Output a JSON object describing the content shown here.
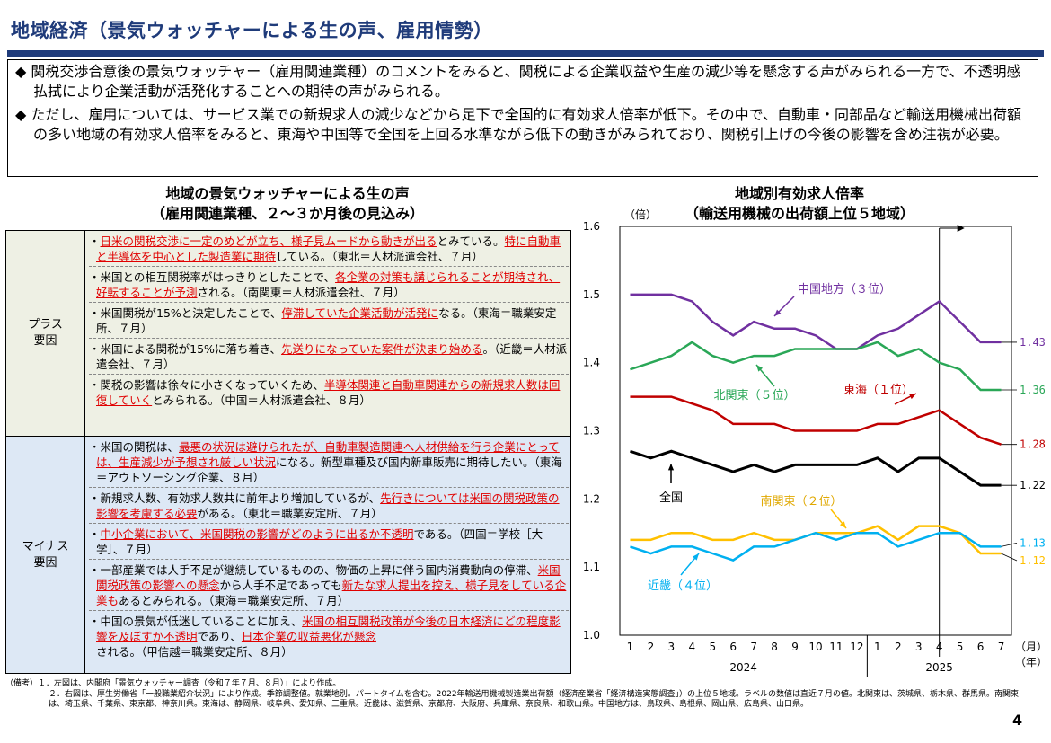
{
  "title": "地域経済（景気ウォッチャーによる生の声、雇用情勢）",
  "summary": [
    "◆ 関税交渉合意後の景気ウォッチャー（雇用関連業種）のコメントをみると、関税による企業収益や生産の減少等を懸念する声がみられる一方で、不透明感払拭により企業活動が活発化することへの期待の声がみられる。",
    "◆ ただし、雇用については、サービス業での新規求人の減少などから足下で全国的に有効求人倍率が低下。その中で、自動車・同部品など輸送用機械出荷額の多い地域の有効求人倍率をみると、東海や中国等で全国を上回る水準ながら低下の動きがみられており、関税引上げの今後の影響を含め注視が必要。"
  ],
  "left_title": [
    "地域の景気ウォッチャーによる生の声",
    "（雇用関連業種、２～３か月後の見込み）"
  ],
  "plus_label": [
    "プラス",
    "要因"
  ],
  "minus_label": [
    "マイナス",
    "要因"
  ],
  "plus_items": [
    [
      [
        "・",
        false
      ],
      [
        "日米の関税交渉に一定のめどが立ち、様子見ムードから動きが出る",
        true
      ],
      [
        "とみている。",
        false
      ],
      [
        "特に自動車と半導体を中心とした製造業に期待",
        true
      ],
      [
        "している。（東北＝人材派遣会社、７月）",
        false
      ]
    ],
    [
      [
        "・米国との相互関税率がはっきりとしたことで、",
        false
      ],
      [
        "各企業の対策も講じられることが期待され、好転することが予測",
        true
      ],
      [
        "される。（南関東＝人材派遣会社、７月）",
        false
      ]
    ],
    [
      [
        "・米国関税が15%と決定したことで、",
        false
      ],
      [
        "停滞していた企業活動が活発に",
        true
      ],
      [
        "なる。（東海＝職業安定所、７月）",
        false
      ]
    ],
    [
      [
        "・米国による関税が15%に落ち着き、",
        false
      ],
      [
        "先送りになっていた案件が決まり始める",
        true
      ],
      [
        "。（近畿＝人材派遣会社、７月）",
        false
      ]
    ],
    [
      [
        "・関税の影響は徐々に小さくなっていくため、",
        false
      ],
      [
        "半導体関連と自動車関連からの新規求人数は回復していく",
        true
      ],
      [
        "とみられる。（中国＝人材派遣会社、８月）",
        false
      ]
    ]
  ],
  "minus_items": [
    [
      [
        "・米国の関税は、",
        false
      ],
      [
        "最悪の状況は避けられたが、自動車製造関連へ人材供給を行う企業にとっては、生産減少が予想され厳しい状況",
        true
      ],
      [
        "になる。新型車種及び国内新車販売に期待したい。（東海＝アウトソーシング企業、８月）",
        false
      ]
    ],
    [
      [
        "・新規求人数、有効求人数共に前年より増加しているが、",
        false
      ],
      [
        "先行きについては米国の関税政策の影響を考慮する必要",
        true
      ],
      [
        "がある。（東北＝職業安定所、７月）",
        false
      ]
    ],
    [
      [
        "・",
        false
      ],
      [
        "中小企業において、米国関税の影響がどのように出るか不透明",
        true
      ],
      [
        "である。（四国＝学校［大学］、７月）",
        false
      ]
    ],
    [
      [
        "・一部産業では人手不足が継続しているものの、物価の上昇に伴う国内消費動向の停滞、",
        false
      ],
      [
        "米国関税政策の影響への懸念",
        true
      ],
      [
        "から人手不足であっても",
        false
      ],
      [
        "新たな求人提出を控え、様子見をしている企業も",
        true
      ],
      [
        "あるとみられる。（東海＝職業安定所、７月）",
        false
      ]
    ],
    [
      [
        "・中国の景気が低迷していることに加え、",
        false
      ],
      [
        "米国の相互関税政策が今後の日本経済にどの程度影響を及ぼすか不透明",
        true
      ],
      [
        "であり、",
        false
      ],
      [
        "日本企業の収益悪化が懸念",
        true
      ],
      [
        "される。（甲信越＝職業安定所、８月）",
        false
      ]
    ]
  ],
  "chart_title": [
    "地域別有効求人倍率",
    "（輸送用機械の出荷額上位５地域）"
  ],
  "chart_data": {
    "type": "line",
    "title": "地域別有効求人倍率（輸送用機械の出荷額上位５地域）",
    "y_unit": "（倍）",
    "x_unit_month": "（月）",
    "x_unit_year": "（年）",
    "ylim": [
      1.0,
      1.6
    ],
    "y_ticks": [
      "1.6",
      "1.5",
      "1.4",
      "1.3",
      "1.2",
      "1.1",
      "1.0"
    ],
    "y_tick_values": [
      1.6,
      1.5,
      1.4,
      1.3,
      1.2,
      1.1,
      1.0
    ],
    "x_months": [
      "1",
      "2",
      "3",
      "4",
      "5",
      "6",
      "7",
      "8",
      "9",
      "10",
      "11",
      "12",
      "1",
      "2",
      "3",
      "4",
      "5",
      "6",
      "7"
    ],
    "years": [
      "2024",
      "2025"
    ],
    "series": [
      {
        "name": "中国地方（３位）",
        "color": "#7030a0",
        "end_label": "1.43",
        "values": [
          1.5,
          1.5,
          1.5,
          1.49,
          1.46,
          1.44,
          1.46,
          1.45,
          1.45,
          1.44,
          1.42,
          1.42,
          1.44,
          1.45,
          1.47,
          1.49,
          1.46,
          1.43,
          1.43
        ]
      },
      {
        "name": "北関東（５位）",
        "color": "#2aa757",
        "end_label": "1.36",
        "values": [
          1.39,
          1.4,
          1.41,
          1.43,
          1.41,
          1.4,
          1.41,
          1.41,
          1.42,
          1.42,
          1.42,
          1.42,
          1.43,
          1.41,
          1.42,
          1.4,
          1.39,
          1.36,
          1.36
        ]
      },
      {
        "name": "東海（１位）",
        "color": "#c00000",
        "end_label": "1.28",
        "values": [
          1.35,
          1.35,
          1.35,
          1.34,
          1.33,
          1.31,
          1.31,
          1.31,
          1.3,
          1.3,
          1.3,
          1.3,
          1.31,
          1.31,
          1.32,
          1.33,
          1.31,
          1.29,
          1.28
        ]
      },
      {
        "name": "全国",
        "color": "#000000",
        "end_label": "1.22",
        "values": [
          1.27,
          1.26,
          1.27,
          1.26,
          1.25,
          1.24,
          1.25,
          1.24,
          1.25,
          1.25,
          1.25,
          1.25,
          1.26,
          1.24,
          1.26,
          1.26,
          1.24,
          1.22,
          1.22
        ]
      },
      {
        "name": "南関東（２位）",
        "color": "#ffc000",
        "end_label": "1.12",
        "values": [
          1.14,
          1.14,
          1.15,
          1.15,
          1.14,
          1.14,
          1.15,
          1.14,
          1.14,
          1.15,
          1.15,
          1.15,
          1.16,
          1.14,
          1.16,
          1.16,
          1.15,
          1.12,
          1.12
        ]
      },
      {
        "name": "近畿（４位）",
        "color": "#00b0f0",
        "end_label": "1.13",
        "values": [
          1.13,
          1.12,
          1.13,
          1.13,
          1.12,
          1.11,
          1.13,
          1.13,
          1.14,
          1.15,
          1.14,
          1.15,
          1.15,
          1.13,
          1.14,
          1.15,
          1.15,
          1.13,
          1.13
        ]
      }
    ]
  },
  "notes": [
    "（備考）１．左図は、内閣府「景気ウォッチャー調査（令和７年７月、８月）」により作成。",
    "２．右図は、厚生労働省「一般職業紹介状況」により作成。季節調整値。就業地別。パートタイムを含む。2022年輸送用機械製造業出荷額（経済産業省「経済構造実態調査」）の上位５地域。ラベルの数値は直近７月の値。北関東は、茨城県、栃木県、群馬県。南関東は、埼玉県、千葉県、東京都、神奈川県。東海は、静岡県、岐阜県、愛知県、三重県。近畿は、滋賀県、京都府、大阪府、兵庫県、奈良県、和歌山県。中国地方は、鳥取県、島根県、岡山県、広島県、山口県。"
  ],
  "page_number": "4"
}
